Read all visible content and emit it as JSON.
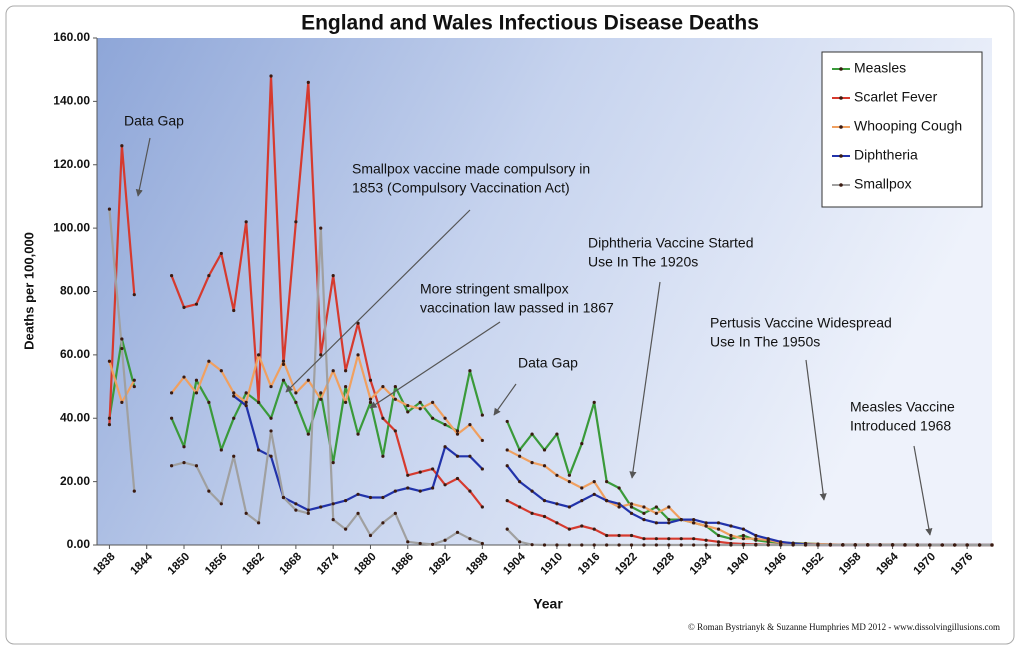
{
  "chart_data": {
    "type": "line",
    "title": "England and Wales Infectious Disease Deaths",
    "y_label": "Deaths per 100,000",
    "x_label": "Year",
    "credit": "© Roman Bystrianyk & Suzanne Humphries MD 2012 - www.dissolvingillusions.com",
    "legend": "top-right",
    "xlim": [
      1836,
      1980
    ],
    "ylim": [
      0,
      160
    ],
    "xticks": [
      1838,
      1844,
      1850,
      1856,
      1862,
      1868,
      1874,
      1880,
      1886,
      1892,
      1898,
      1904,
      1910,
      1916,
      1922,
      1928,
      1934,
      1940,
      1946,
      1952,
      1958,
      1964,
      1970,
      1976
    ],
    "yticks": [
      {
        "value": 0,
        "label": "0.00"
      },
      {
        "value": 20,
        "label": "20.00"
      },
      {
        "value": 40,
        "label": "40.00"
      },
      {
        "value": 60,
        "label": "60.00"
      },
      {
        "value": 80,
        "label": "80.00"
      },
      {
        "value": 100,
        "label": "100.00"
      },
      {
        "value": 120,
        "label": "120.00"
      },
      {
        "value": 140,
        "label": "140.00"
      },
      {
        "value": 160,
        "label": "160.00"
      }
    ],
    "x": [
      1838,
      1840,
      1842,
      1844,
      1846,
      1848,
      1850,
      1852,
      1854,
      1856,
      1858,
      1860,
      1862,
      1864,
      1866,
      1868,
      1870,
      1872,
      1874,
      1876,
      1878,
      1880,
      1882,
      1884,
      1886,
      1888,
      1890,
      1892,
      1894,
      1896,
      1898,
      1900,
      1902,
      1904,
      1906,
      1908,
      1910,
      1912,
      1914,
      1916,
      1918,
      1920,
      1922,
      1924,
      1926,
      1928,
      1930,
      1932,
      1934,
      1936,
      1938,
      1940,
      1942,
      1944,
      1946,
      1948,
      1950,
      1952,
      1954,
      1956,
      1958,
      1960,
      1962,
      1964,
      1966,
      1968,
      1970,
      1972,
      1974,
      1976,
      1978,
      1980
    ],
    "series": [
      {
        "name": "Measles",
        "color": "#3a9a3a",
        "values": [
          40,
          65,
          50,
          null,
          null,
          40,
          31,
          52,
          45,
          30,
          40,
          48,
          45,
          40,
          52,
          45,
          35,
          48,
          26,
          50,
          35,
          45,
          28,
          50,
          42,
          45,
          40,
          38,
          36,
          55,
          41,
          null,
          39,
          30,
          35,
          30,
          35,
          22,
          32,
          45,
          20,
          18,
          12,
          10,
          12,
          8,
          8,
          7,
          6,
          3,
          2,
          3,
          1.5,
          1,
          0.8,
          0.6,
          0.5,
          0.3,
          0.1,
          0.1,
          0.1,
          0.1,
          0.1,
          0.1,
          0.1,
          0,
          0,
          0,
          0,
          0,
          0,
          0
        ]
      },
      {
        "name": "Scarlet Fever",
        "color": "#d63a2e",
        "values": [
          38,
          126,
          79,
          null,
          null,
          85,
          75,
          76,
          85,
          92,
          74,
          102,
          45,
          148,
          57,
          102,
          146,
          60,
          85,
          55,
          70,
          52,
          40,
          36,
          22,
          23,
          24,
          19,
          21,
          17,
          12,
          null,
          14,
          12,
          10,
          9,
          7,
          5,
          6,
          5,
          3,
          3,
          3,
          2,
          2,
          2,
          2,
          2,
          1.5,
          1,
          0.5,
          0.3,
          0.2,
          0.1,
          0.1,
          0.1,
          0,
          0,
          0,
          0,
          0,
          0,
          0,
          0,
          0,
          0,
          0,
          0,
          0,
          0,
          0,
          0
        ]
      },
      {
        "name": "Whooping Cough",
        "color": "#f0a060",
        "values": [
          58,
          45,
          52,
          null,
          null,
          48,
          53,
          48,
          58,
          55,
          48,
          45,
          60,
          50,
          58,
          48,
          52,
          46,
          55,
          45,
          60,
          46,
          50,
          46,
          44,
          43,
          45,
          40,
          35,
          38,
          33,
          null,
          30,
          28,
          26,
          25,
          22,
          20,
          18,
          20,
          14,
          12,
          13,
          12,
          10,
          12,
          8,
          7,
          6,
          5,
          3,
          2,
          2,
          1.5,
          0.8,
          0.5,
          0.4,
          0.3,
          0.2,
          0.1,
          0.1,
          0.1,
          0.1,
          0.1,
          0,
          0,
          0,
          0,
          0,
          0,
          0,
          0
        ]
      },
      {
        "name": "Diphtheria",
        "color": "#2233aa",
        "values": [
          null,
          null,
          null,
          null,
          null,
          null,
          null,
          null,
          null,
          null,
          47,
          44,
          30,
          28,
          15,
          13,
          11,
          12,
          13,
          14,
          16,
          15,
          15,
          17,
          18,
          17,
          18,
          31,
          28,
          28,
          24,
          null,
          25,
          20,
          17,
          14,
          13,
          12,
          14,
          16,
          14,
          13,
          10,
          8,
          7,
          7,
          8,
          8,
          7,
          7,
          6,
          5,
          3,
          2,
          1,
          0.5,
          0.2,
          0,
          0,
          0,
          0,
          0,
          0,
          0,
          0,
          0,
          0,
          0,
          0,
          0,
          0,
          0
        ]
      },
      {
        "name": "Smallpox",
        "color": "#a0a0a0",
        "values": [
          106,
          62,
          17,
          null,
          null,
          25,
          26,
          25,
          17,
          13,
          28,
          10,
          7,
          36,
          15,
          11,
          10,
          100,
          8,
          5,
          10,
          3,
          7,
          10,
          1,
          0.5,
          0.2,
          1.5,
          4,
          2,
          0.5,
          null,
          5,
          1,
          0.1,
          0,
          0,
          0,
          0,
          0,
          0,
          0,
          0,
          0,
          0,
          0,
          0,
          0,
          0,
          0,
          0,
          0,
          0,
          0,
          0,
          0,
          0,
          0,
          0,
          0,
          0,
          0,
          0,
          0,
          0,
          0,
          0,
          0,
          0,
          0,
          0,
          0
        ]
      }
    ],
    "annotations": [
      {
        "lines": [
          "Data Gap"
        ]
      },
      {
        "lines": [
          "Smallpox vaccine made compulsory in",
          "1853 (Compulsory Vaccination Act)"
        ]
      },
      {
        "lines": [
          "More stringent smallpox",
          "vaccination law passed in 1867"
        ]
      },
      {
        "lines": [
          "Data Gap"
        ]
      },
      {
        "lines": [
          "Diphtheria Vaccine Started",
          "Use In The 1920s"
        ]
      },
      {
        "lines": [
          "Pertusis Vaccine Widespread",
          "Use In The 1950s"
        ]
      },
      {
        "lines": [
          "Measles Vaccine",
          "Introduced 1968"
        ]
      }
    ]
  }
}
